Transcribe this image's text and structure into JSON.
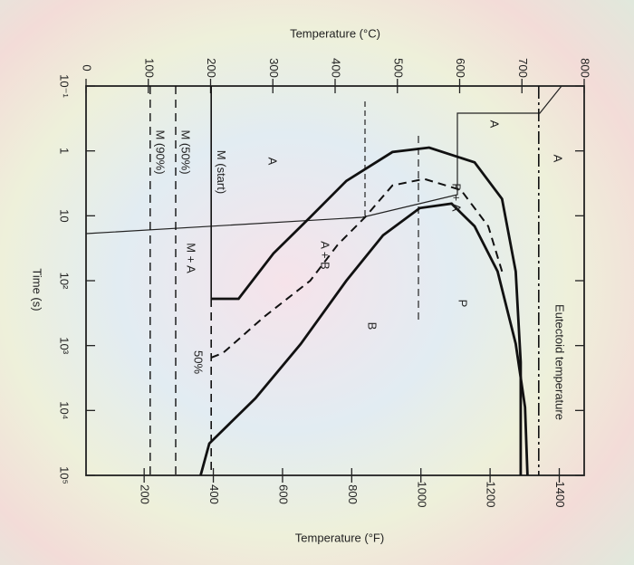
{
  "chart_data": {
    "type": "line",
    "title": "Temperature (°C)",
    "y2_label": "Temperature (°F)",
    "x_label": "Time (s)",
    "x_scale": "log",
    "xlim": [
      0.1,
      100000
    ],
    "xticks": [
      {
        "value": 0.1,
        "label": "10⁻¹"
      },
      1,
      10,
      {
        "value": 100,
        "label": "10²"
      },
      {
        "value": 1000,
        "label": "10³"
      },
      {
        "value": 10000,
        "label": "10⁴"
      },
      {
        "value": 100000,
        "label": "10⁵"
      }
    ],
    "ylim": [
      0,
      800
    ],
    "yticks": [
      0,
      100,
      200,
      300,
      400,
      500,
      600,
      700,
      800
    ],
    "y2lim": [
      32,
      1472
    ],
    "y2ticks": [
      200,
      400,
      600,
      800,
      1000,
      1200,
      1400
    ],
    "series": [
      {
        "style": "solid",
        "x": [
          190,
          190,
          38,
          10.5,
          2.9,
          1.04,
          0.89,
          1.5,
          5.5,
          72,
          1800,
          100000
        ],
        "values": [
          201,
          245,
          301,
          360,
          418,
          492,
          551,
          624,
          668,
          690,
          698,
          698
        ]
      },
      {
        "style": "solid",
        "x": [
          100000,
          32300,
          6500,
          940,
          100,
          20,
          7.6,
          6.5,
          14.5,
          72,
          940,
          8900,
          100000
        ],
        "values": [
          184,
          198,
          272,
          345,
          418,
          477,
          536,
          587,
          624,
          661,
          690,
          705,
          709
        ]
      },
      {
        "style": "dashed",
        "x": [
          1530,
          1300,
          360,
          100,
          28,
          10.5,
          3.4,
          2.7,
          4.0,
          14.5,
          72
        ],
        "values": [
          201,
          220,
          286,
          360,
          404,
          448,
          492,
          543,
          602,
          646,
          668
        ]
      }
    ],
    "levels": [
      {
        "label": "Eutectoid temperature",
        "value": 727
      },
      {
        "label": "M (start)",
        "value": 201
      },
      {
        "label": "M (50%)",
        "value": 144
      },
      {
        "label": "M (90%)",
        "value": 103
      }
    ],
    "regions": [
      "A",
      "A",
      "A",
      "P",
      "B",
      "M + A",
      "50%",
      "P + A",
      "A + B"
    ]
  }
}
